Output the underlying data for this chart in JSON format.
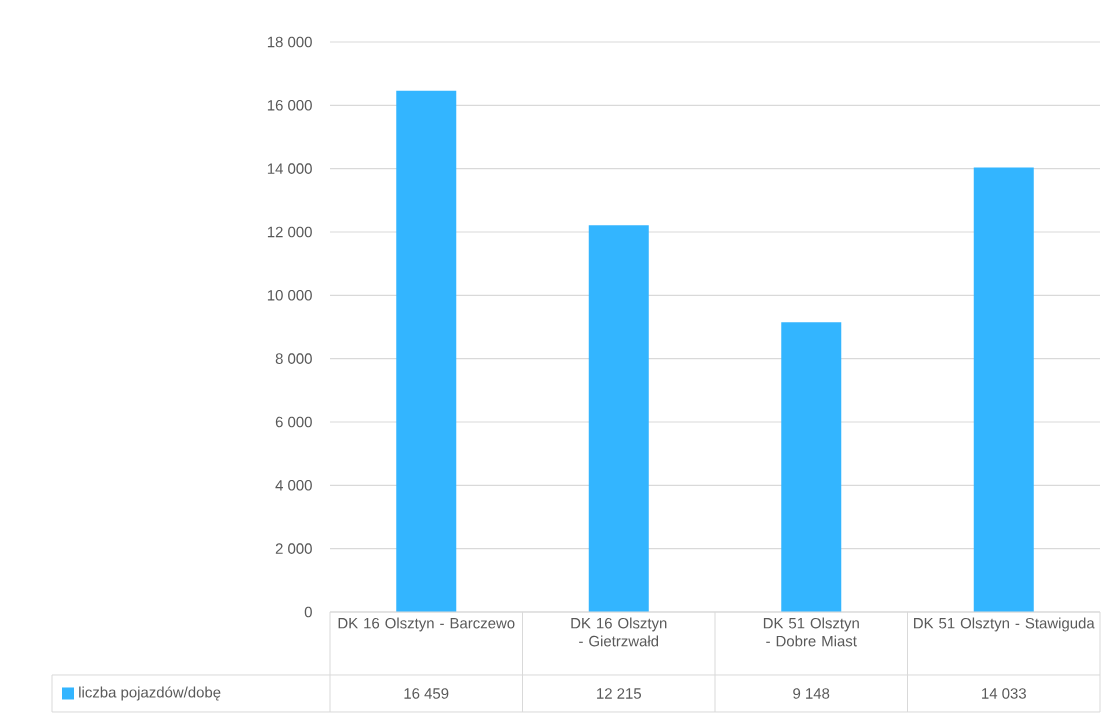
{
  "chart_data": {
    "type": "bar",
    "categories": [
      "DK 16 Olsztyn - Barczewo",
      "DK 16 Olsztyn - Gietrzwałd",
      "DK 51 Olsztyn - Dobre Miast",
      "DK 51 Olsztyn - Stawiguda"
    ],
    "series": [
      {
        "name": "liczba pojazdów/dobę",
        "color": "#33b5ff",
        "values": [
          16459,
          12215,
          9148,
          14033
        ],
        "value_labels": [
          "16 459",
          "12 215",
          "9 148",
          "14 033"
        ]
      }
    ],
    "ylim": [
      0,
      18000
    ],
    "yticks": [
      0,
      {
        "value": 2000,
        "label": "2 000"
      },
      {
        "value": 4000,
        "label": "4 000"
      },
      {
        "value": 6000,
        "label": "6 000"
      },
      {
        "value": 8000,
        "label": "8 000"
      },
      {
        "value": 10000,
        "label": "10 000"
      },
      {
        "value": 12000,
        "label": "12 000"
      },
      {
        "value": 14000,
        "label": "14 000"
      },
      {
        "value": 16000,
        "label": "16 000"
      },
      {
        "value": 18000,
        "label": "18 000"
      }
    ],
    "grid": "y"
  }
}
